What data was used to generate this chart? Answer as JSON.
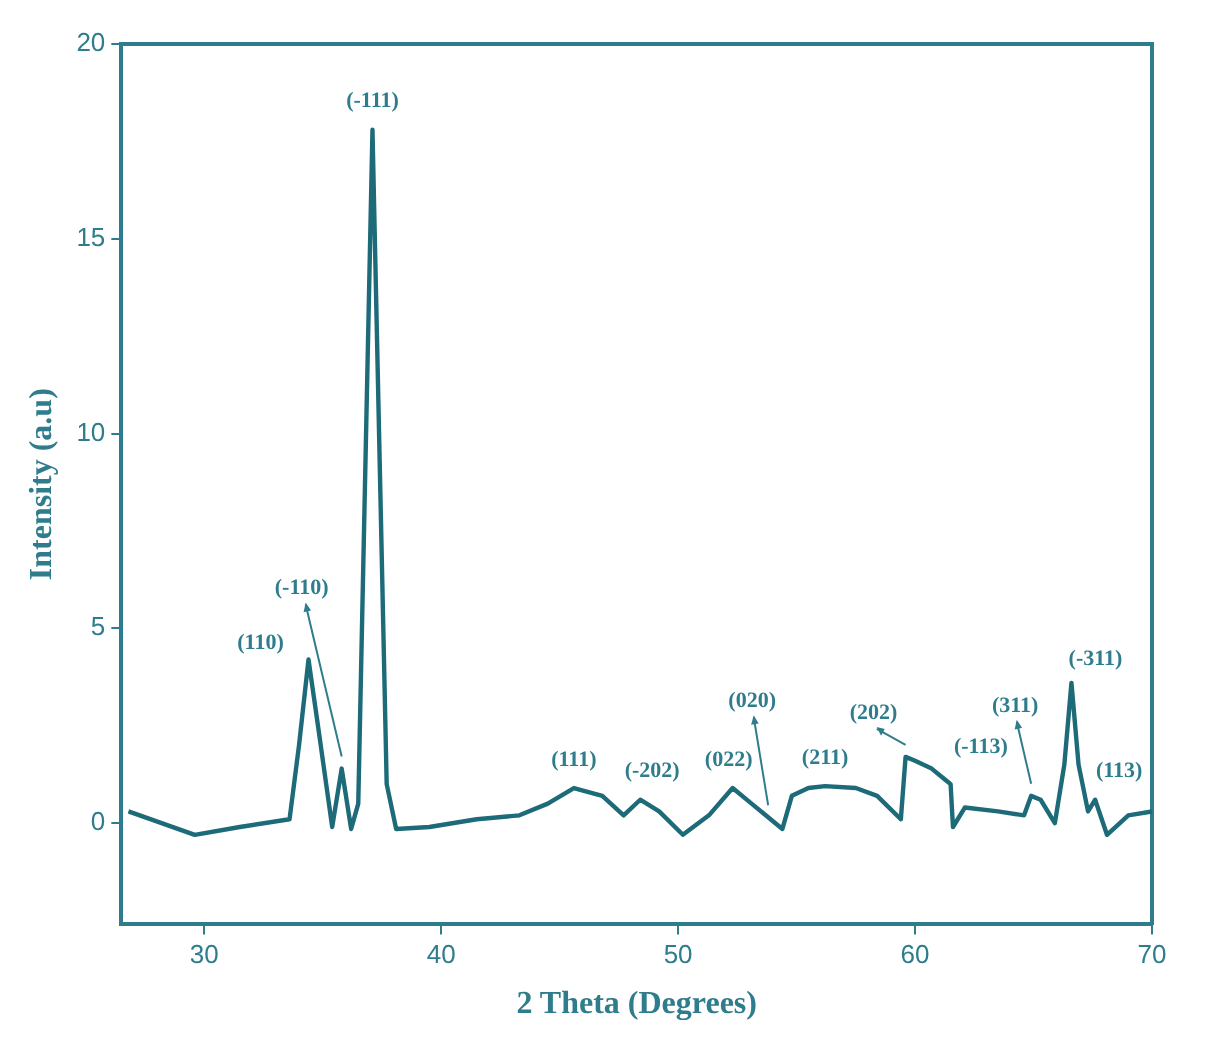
{
  "chart_data": {
    "type": "line",
    "xlabel": "2 Theta (Degrees)",
    "ylabel": "Intensity (a.u)",
    "xlim": [
      26.5,
      70
    ],
    "xticks": [
      30,
      40,
      50,
      60,
      70
    ],
    "ylim": [
      -2.6,
      20
    ],
    "yticks": [
      0,
      5,
      10,
      15,
      20
    ],
    "grid": false,
    "legend": false,
    "marker": "none",
    "line_style": "solid",
    "series": [
      {
        "color": "#1d6b78",
        "x": [
          26.8,
          28.2,
          29.6,
          31.5,
          33.6,
          34.0,
          34.4,
          34.8,
          35.4,
          35.8,
          36.2,
          36.5,
          37.1,
          37.7,
          38.1,
          39.5,
          41.5,
          43.3,
          44.5,
          45.6,
          46.8,
          47.7,
          48.4,
          49.2,
          50.2,
          51.3,
          52.3,
          53.1,
          53.8,
          54.4,
          54.8,
          55.5,
          56.2,
          57.5,
          58.4,
          59.4,
          59.6,
          60.0,
          60.7,
          61.3,
          61.5,
          61.6,
          62.1,
          63.5,
          64.6,
          64.9,
          65.3,
          65.9,
          66.3,
          66.6,
          66.9,
          67.3,
          67.6,
          68.1,
          69.0,
          70.0
        ],
        "values": [
          0.3,
          0.0,
          -0.3,
          -0.1,
          0.1,
          2.0,
          4.2,
          2.5,
          -0.1,
          1.4,
          -0.15,
          0.5,
          17.8,
          1.0,
          -0.15,
          -0.1,
          0.1,
          0.2,
          0.5,
          0.9,
          0.7,
          0.2,
          0.6,
          0.3,
          -0.3,
          0.2,
          0.9,
          0.5,
          0.15,
          -0.15,
          0.7,
          0.9,
          0.95,
          0.9,
          0.7,
          0.1,
          1.7,
          1.6,
          1.4,
          1.1,
          1.0,
          -0.1,
          0.4,
          0.3,
          0.2,
          0.7,
          0.6,
          0.0,
          1.5,
          3.6,
          1.5,
          0.3,
          0.6,
          -0.3,
          0.2,
          0.3
        ]
      }
    ],
    "annotations": [
      {
        "text": "(-111)",
        "x": 37.1,
        "y": 17.8
      },
      {
        "text": "(-110)",
        "x": 35.8,
        "y": 1.4
      },
      {
        "text": "(110)",
        "x": 34.4,
        "y": 4.2
      },
      {
        "text": "(111)",
        "x": 45.6,
        "y": 0.9
      },
      {
        "text": "(-202)",
        "x": 48.4,
        "y": 0.6
      },
      {
        "text": "(022)",
        "x": 52.3,
        "y": 0.9
      },
      {
        "text": "(020)",
        "x": 53.8,
        "y": 0.15
      },
      {
        "text": "(211)",
        "x": 56.2,
        "y": 0.95
      },
      {
        "text": "(202)",
        "x": 59.6,
        "y": 1.7
      },
      {
        "text": "(-113)",
        "x": 62.1,
        "y": 0.4
      },
      {
        "text": "(311)",
        "x": 64.9,
        "y": 0.7
      },
      {
        "text": "(-311)",
        "x": 66.6,
        "y": 3.6
      },
      {
        "text": "(113)",
        "x": 67.6,
        "y": 0.6
      }
    ]
  }
}
